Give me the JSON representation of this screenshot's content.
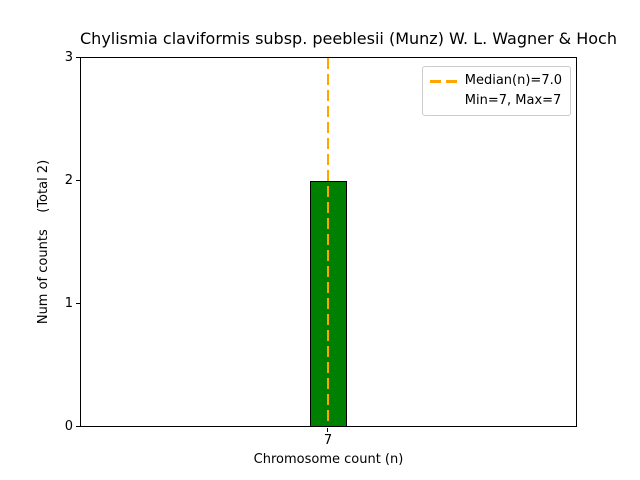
{
  "chart_data": {
    "type": "bar",
    "title": "Chylismia claviformis subsp. peeblesii (Munz) W. L. Wagner & Hoch",
    "xlabel": "Chromosome count (n)",
    "ylabel": "Num of counts    (Total 2)",
    "categories": [
      "7"
    ],
    "values": [
      2
    ],
    "total_counts": 2,
    "median_n": 7.0,
    "min_n": 7,
    "max_n": 7,
    "ylim": [
      0,
      3
    ],
    "yticks": [
      "0",
      "1",
      "2",
      "3"
    ],
    "xticks": [
      "7"
    ],
    "grid": false,
    "legend": {
      "position": "upper-right",
      "entries": [
        {
          "label": "Median(n)=7.0",
          "marker": "orange-dashed-line"
        },
        {
          "label": "Min=7, Max=7",
          "marker": "none"
        }
      ]
    },
    "colors": {
      "bar_fill": "#008000",
      "bar_edge": "#000000",
      "median_line": "#FFA500",
      "legend_border": "#cccccc",
      "text": "#000000",
      "background": "#ffffff"
    }
  }
}
